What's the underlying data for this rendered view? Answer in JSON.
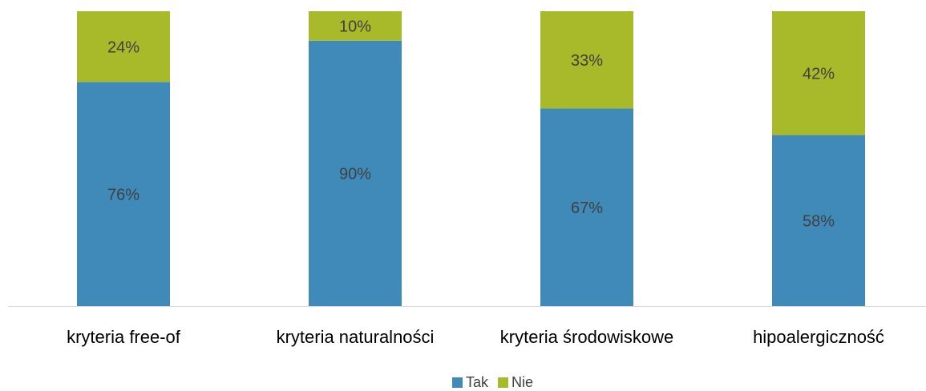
{
  "chart_data": {
    "type": "stacked-bar",
    "categories": [
      "kryteria free-of",
      "kryteria naturalności",
      "kryteria środowiskowe",
      "hipoalergiczność"
    ],
    "series": [
      {
        "name": "Tak",
        "color": "#3f8ab8",
        "values": [
          76,
          90,
          67,
          58
        ],
        "value_labels": [
          "76%",
          "90%",
          "67%",
          "58%"
        ]
      },
      {
        "name": "Nie",
        "color": "#a8b92a",
        "values": [
          24,
          10,
          33,
          42
        ],
        "value_labels": [
          "24%",
          "10%",
          "33%",
          "42%"
        ]
      }
    ],
    "legend": "bottom"
  }
}
